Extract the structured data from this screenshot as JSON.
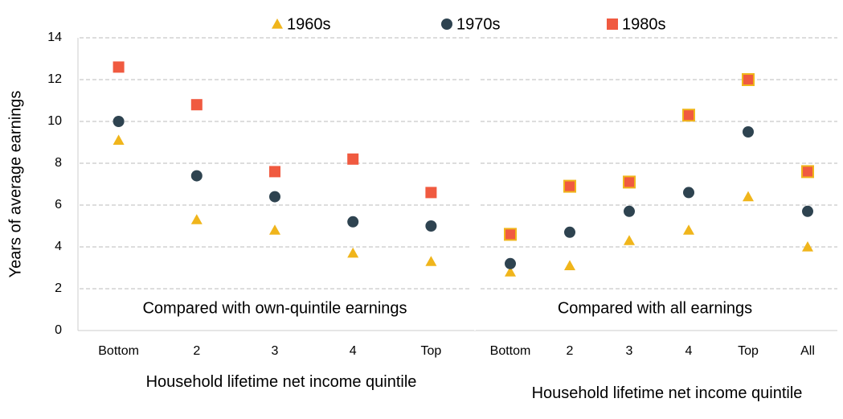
{
  "chart_data": {
    "type": "dot",
    "ylabel": "Years of average earnings",
    "ylim": [
      0,
      14
    ],
    "yticks": [
      0,
      2,
      4,
      6,
      8,
      10,
      12,
      14
    ],
    "grid": true,
    "legend": "top",
    "series": [
      {
        "name": "1960s",
        "color": "#f0b51b",
        "marker": "triangle"
      },
      {
        "name": "1970s",
        "color": "#2e4350",
        "marker": "circle"
      },
      {
        "name": "1980s",
        "color": "#f05a40",
        "marker": "square"
      }
    ],
    "panels": [
      {
        "annotation": "Compared with own-quintile earnings",
        "xlabel": "Household lifetime net income quintile",
        "categories": [
          "Bottom",
          "2",
          "3",
          "4",
          "Top"
        ],
        "series": [
          {
            "values": [
              9.1,
              5.3,
              4.8,
              3.7,
              3.3
            ]
          },
          {
            "values": [
              10.0,
              7.4,
              6.4,
              5.2,
              5.0
            ]
          },
          {
            "values": [
              12.6,
              10.8,
              7.6,
              8.2,
              6.6
            ]
          }
        ]
      },
      {
        "annotation": "Compared with all earnings",
        "xlabel": "Household lifetime net income quintile",
        "categories": [
          "Bottom",
          "2",
          "3",
          "4",
          "Top",
          "All"
        ],
        "marker_edge": "#f0b51b",
        "series": [
          {
            "values": [
              2.8,
              3.1,
              4.3,
              4.8,
              6.4,
              4.0
            ]
          },
          {
            "values": [
              3.2,
              4.7,
              5.7,
              6.6,
              9.5,
              5.7
            ]
          },
          {
            "values": [
              4.6,
              6.9,
              7.1,
              10.3,
              12.0,
              7.6
            ]
          }
        ]
      }
    ]
  }
}
